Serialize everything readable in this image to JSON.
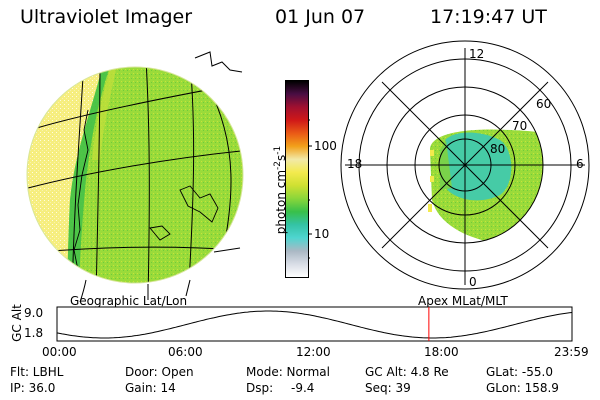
{
  "header": {
    "instrument": "Ultraviolet Imager",
    "date": "01 Jun 07",
    "time": "17:19:47 UT"
  },
  "left_panel": {
    "caption": "Geographic Lat/Lon"
  },
  "right_panel": {
    "caption": "Apex MLat/MLT",
    "mlt_labels": [
      "12",
      "18",
      "6",
      "0"
    ],
    "lat_labels": [
      "60",
      "70",
      "80"
    ]
  },
  "colorbar": {
    "unit_text": "photon cm",
    "unit_exp1": "-2",
    "unit_mid": "s",
    "unit_exp2": "-1",
    "ticks": [
      "100",
      "10"
    ],
    "scale": "log",
    "colors": [
      "#ffffff",
      "#d8dde6",
      "#aab8c4",
      "#4fd5d0",
      "#34c3a5",
      "#38c04a",
      "#8ad63a",
      "#cfe032",
      "#f3ea4d",
      "#f2e9a8",
      "#f2a01a",
      "#ea5a16",
      "#d01818",
      "#a01030",
      "#4a0d43",
      "#000000"
    ]
  },
  "orbit_plot": {
    "ylabel": "GC Alt",
    "yticks": [
      "9.0",
      "1.8"
    ],
    "xticks": [
      "00:00",
      "06:00",
      "12:00",
      "18:00",
      "23:59"
    ],
    "marker_time": "17:19:47",
    "marker_color": "#ff0000"
  },
  "info": {
    "flt": "Flt: LBHL",
    "ip": "IP: 36.0",
    "door": "Door: Open",
    "gain": "Gain: 14",
    "mode": "Mode: Normal",
    "dsp_label": "Dsp:",
    "dsp_value": "-9.4",
    "gcalt": "GC Alt: 4.8 Re",
    "seq": "Seq: 39",
    "glat": "GLat: -55.0",
    "glon": "GLon: 158.9"
  }
}
